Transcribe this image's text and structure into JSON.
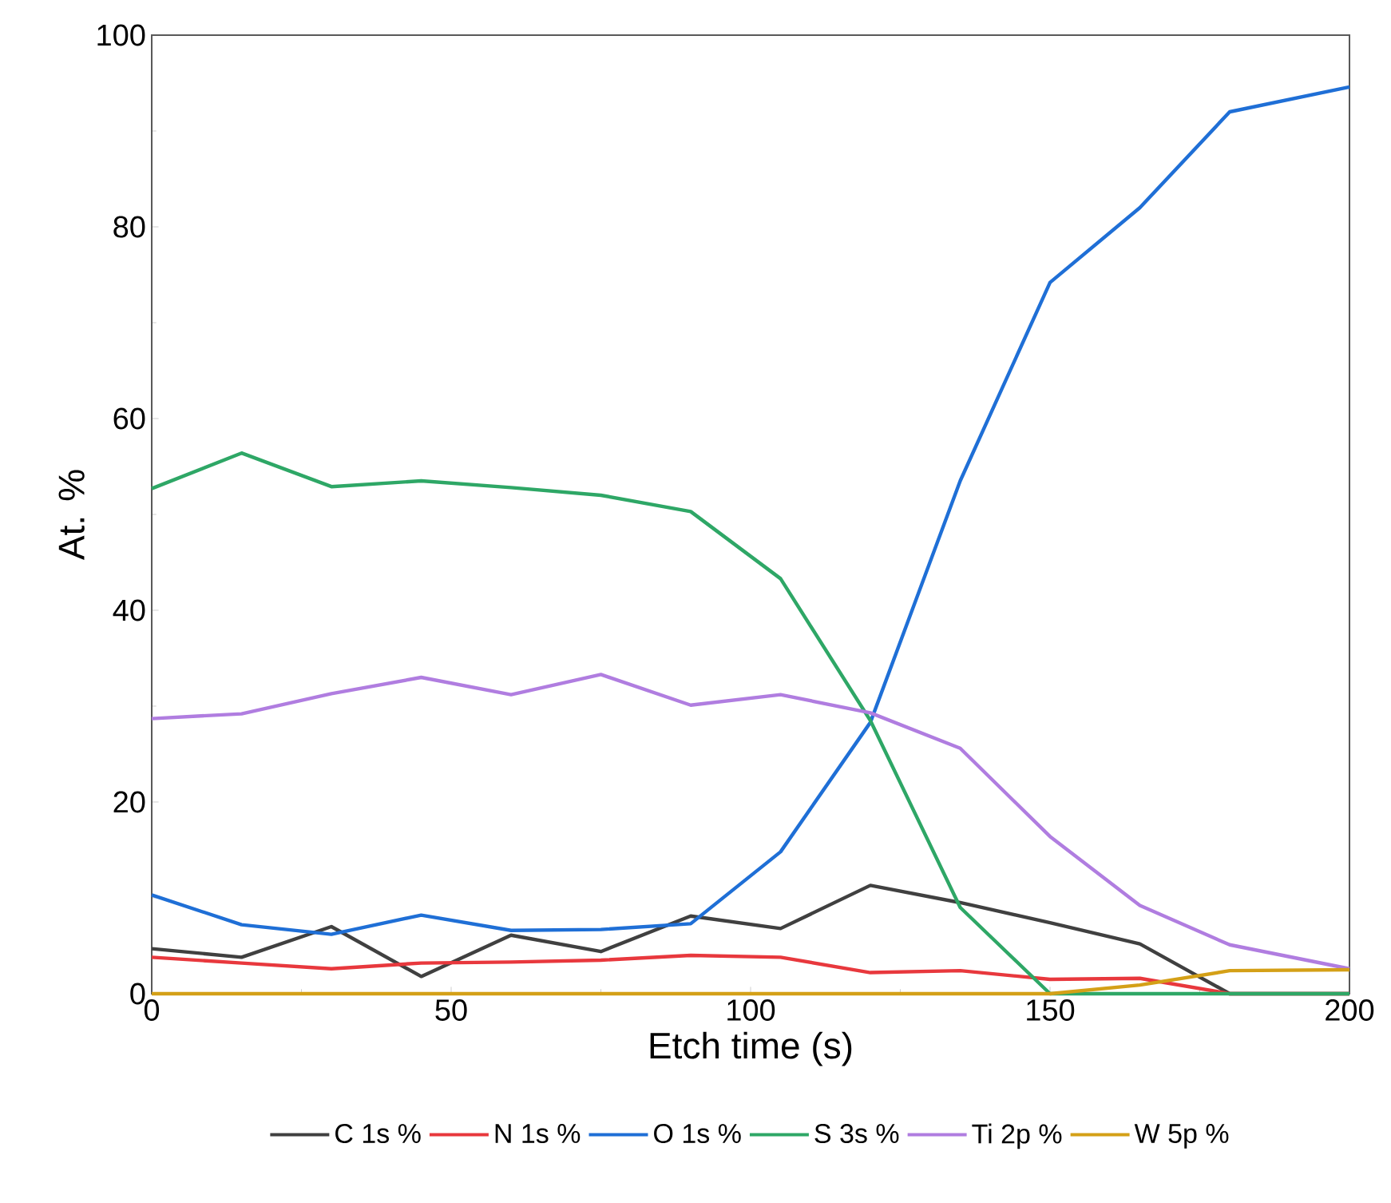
{
  "chart_data": {
    "type": "line",
    "xlabel": "Etch time (s)",
    "ylabel": "At. %",
    "x": [
      0,
      15,
      30,
      45,
      60,
      75,
      90,
      105,
      120,
      135,
      150,
      165,
      180,
      200
    ],
    "xlim": [
      0,
      200
    ],
    "ylim": [
      0,
      100
    ],
    "xticks": [
      0,
      50,
      100,
      150,
      200
    ],
    "yticks": [
      0,
      20,
      40,
      60,
      80,
      100
    ],
    "grid": false,
    "legend": "bottom",
    "marker": "none",
    "line_style": "solid",
    "series": [
      {
        "name": "C 1s %",
        "color": "#404040",
        "values": [
          4.7,
          3.8,
          7.0,
          1.8,
          6.1,
          4.4,
          8.1,
          6.8,
          11.3,
          9.5,
          7.4,
          5.2,
          0,
          0
        ]
      },
      {
        "name": "N 1s %",
        "color": "#e8383d",
        "values": [
          3.8,
          3.2,
          2.6,
          3.2,
          3.3,
          3.5,
          4.0,
          3.8,
          2.2,
          2.4,
          1.5,
          1.6,
          0,
          0
        ]
      },
      {
        "name": "O 1s %",
        "color": "#1f6fd6",
        "values": [
          10.3,
          7.2,
          6.2,
          8.2,
          6.6,
          6.7,
          7.3,
          14.8,
          28.3,
          53.5,
          74.2,
          82.0,
          92.0,
          94.6
        ]
      },
      {
        "name": "S 3s %",
        "color": "#2ea766",
        "values": [
          52.7,
          56.4,
          52.9,
          53.5,
          52.8,
          52.0,
          50.3,
          43.3,
          28.5,
          9.0,
          0,
          0,
          0,
          0
        ]
      },
      {
        "name": "Ti 2p %",
        "color": "#b07de0",
        "values": [
          28.7,
          29.2,
          31.3,
          33.0,
          31.2,
          33.3,
          30.1,
          31.2,
          29.3,
          25.6,
          16.4,
          9.2,
          5.1,
          2.6
        ]
      },
      {
        "name": "W 5p %",
        "color": "#d4a017",
        "values": [
          0,
          0,
          0,
          0,
          0,
          0,
          0,
          0,
          0,
          0,
          0,
          0.9,
          2.4,
          2.5
        ]
      }
    ]
  }
}
